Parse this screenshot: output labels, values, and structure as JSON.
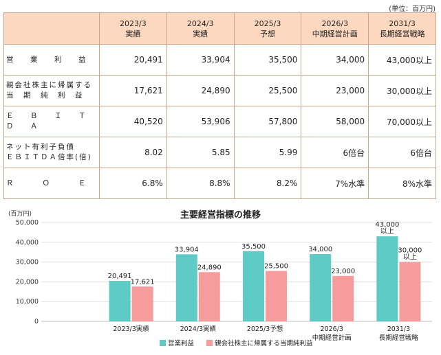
{
  "unit_note": "(単位：百万円)",
  "table": {
    "headers": [
      {
        "year": "2023/3",
        "kind": "実績"
      },
      {
        "year": "2024/3",
        "kind": "実績"
      },
      {
        "year": "2025/3",
        "kind": "予想"
      },
      {
        "year": "2026/3",
        "kind": "中期経営計画"
      },
      {
        "year": "2031/3",
        "kind": "長期経営戦略"
      }
    ],
    "rows": [
      {
        "label": "営　業　利　益",
        "values": [
          "20,491",
          "33,904",
          "35,500",
          "34,000",
          "43,000以上"
        ]
      },
      {
        "label": "親会社株主に帰属する\n当　期　純　利　益",
        "values": [
          "17,621",
          "24,890",
          "25,500",
          "23,000",
          "30,000以上"
        ]
      },
      {
        "label": "Ｅ　Ｂ　Ｉ　Ｔ　Ｄ　Ａ",
        "values": [
          "40,520",
          "53,906",
          "57,800",
          "58,000",
          "70,000以上"
        ]
      },
      {
        "label": "ネット有利子負債\nＥＢＩＴＤＡ倍率(倍)",
        "values": [
          "8.02",
          "5.85",
          "5.99",
          "6倍台",
          "6倍台"
        ]
      },
      {
        "label": "Ｒ　　Ｏ　　Ｅ",
        "values": [
          "6.8%",
          "8.8%",
          "8.2%",
          "7%水準",
          "8%水準"
        ]
      }
    ]
  },
  "chart_data": {
    "type": "bar",
    "title": "主要経営指標の推移",
    "ylabel": "(百万円)",
    "ylim": [
      0,
      50000
    ],
    "yticks": [
      "0",
      "10,000",
      "20,000",
      "30,000",
      "40,000",
      "50,000"
    ],
    "categories": [
      "2023/3実績",
      "2024/3実績",
      "2025/3予想",
      "2026/3\n中期経営計画",
      "2031/3\n長期経営戦略"
    ],
    "series": [
      {
        "name": "営業利益",
        "color": "#5ecbc6",
        "values": [
          20491,
          33904,
          35500,
          34000,
          43000
        ],
        "labels": [
          "20,491",
          "33,904",
          "35,500",
          "34,000",
          "43,000\n以上"
        ]
      },
      {
        "name": "親会社株主に帰属する当期純利益",
        "color": "#f79c9c",
        "values": [
          17621,
          24890,
          25500,
          23000,
          30000
        ],
        "labels": [
          "17,621",
          "24,890",
          "25,500",
          "23,000",
          "30,000\n以上"
        ]
      }
    ],
    "grid": true,
    "legend": "bottom"
  }
}
